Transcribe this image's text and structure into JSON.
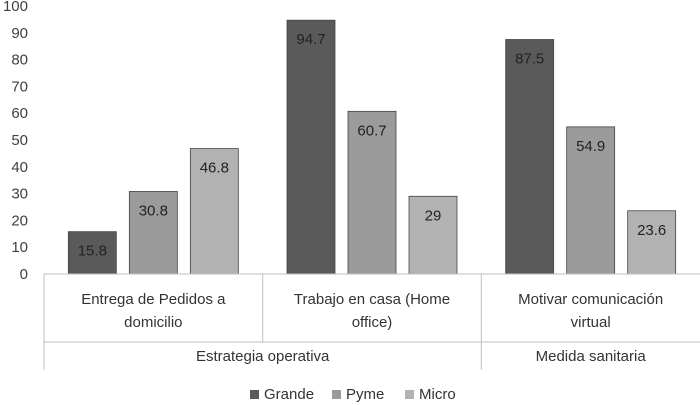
{
  "chart_data": {
    "type": "bar",
    "title": "",
    "xlabel": "",
    "ylabel": "",
    "ylim": [
      0,
      100
    ],
    "yticks": [
      0,
      10,
      20,
      30,
      40,
      50,
      60,
      70,
      80,
      90,
      100
    ],
    "grid": false,
    "legend_position": "bottom",
    "categories": [
      [
        "Entrega de Pedidos a",
        "domicilio"
      ],
      [
        "Trabajo en casa (Home",
        "office)"
      ],
      [
        "Motivar comunicación",
        "virtual"
      ]
    ],
    "groups": [
      {
        "label": "Estrategia operativa",
        "categories": [
          0,
          1
        ]
      },
      {
        "label": "Medida sanitaria",
        "categories": [
          2
        ]
      }
    ],
    "series": [
      {
        "name": "Grande",
        "color": "#5a5a5a",
        "values": [
          15.8,
          94.7,
          87.5
        ]
      },
      {
        "name": "Pyme",
        "color": "#9b9b9b",
        "values": [
          30.8,
          60.7,
          54.9
        ]
      },
      {
        "name": "Micro",
        "color": "#b2b2b2",
        "values": [
          46.8,
          29,
          23.6
        ]
      }
    ]
  }
}
